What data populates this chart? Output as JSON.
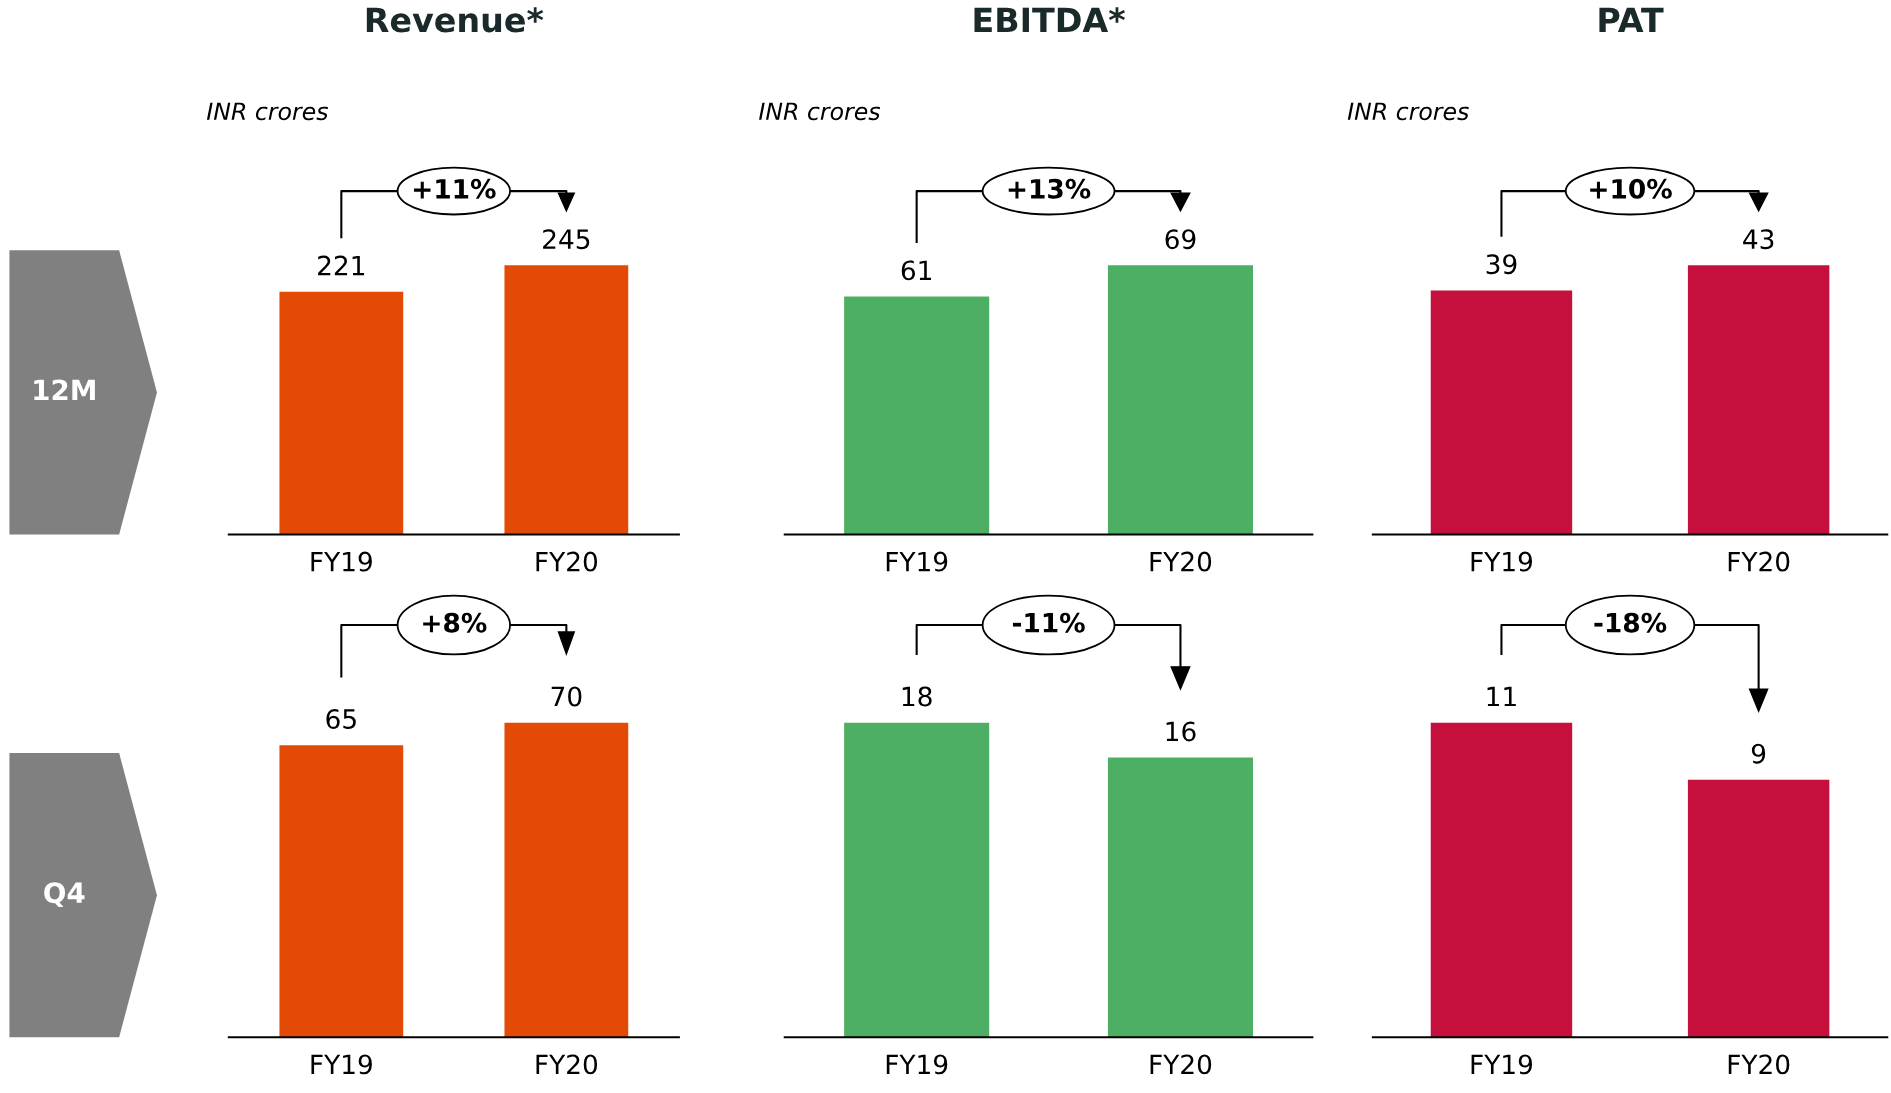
{
  "chart_data": [
    {
      "type": "bar",
      "title": "Revenue*",
      "subtitle": "INR crores",
      "categories": [
        "FY19",
        "FY20"
      ],
      "values": [
        221,
        245
      ],
      "color": "#e34a05",
      "data_labels": true,
      "tick_labels": "x",
      "annotations": [
        "+11%",
        "12M"
      ]
    },
    {
      "type": "bar",
      "title": "EBITDA*",
      "subtitle": "INR crores",
      "categories": [
        "FY19",
        "FY20"
      ],
      "values": [
        61,
        69
      ],
      "color": "#4caf63",
      "data_labels": true,
      "tick_labels": "x",
      "annotations": [
        "+13%"
      ]
    },
    {
      "type": "bar",
      "title": "PAT",
      "subtitle": "INR crores",
      "categories": [
        "FY19",
        "FY20"
      ],
      "values": [
        39,
        43
      ],
      "color": "#c50f3c",
      "data_labels": true,
      "tick_labels": "x",
      "annotations": [
        "+10%"
      ]
    },
    {
      "type": "bar",
      "categories": [
        "FY19",
        "FY20"
      ],
      "values": [
        65,
        70
      ],
      "color": "#e34a05",
      "data_labels": true,
      "tick_labels": "x",
      "annotations": [
        "+8%",
        "Q4"
      ]
    },
    {
      "type": "bar",
      "categories": [
        "FY19",
        "FY20"
      ],
      "values": [
        18,
        16
      ],
      "color": "#4caf63",
      "data_labels": true,
      "tick_labels": "x",
      "annotations": [
        "-11%"
      ]
    },
    {
      "type": "bar",
      "categories": [
        "FY19",
        "FY20"
      ],
      "values": [
        11,
        9
      ],
      "color": "#c50f3c",
      "data_labels": true,
      "tick_labels": "x",
      "annotations": [
        "-18%"
      ]
    }
  ]
}
